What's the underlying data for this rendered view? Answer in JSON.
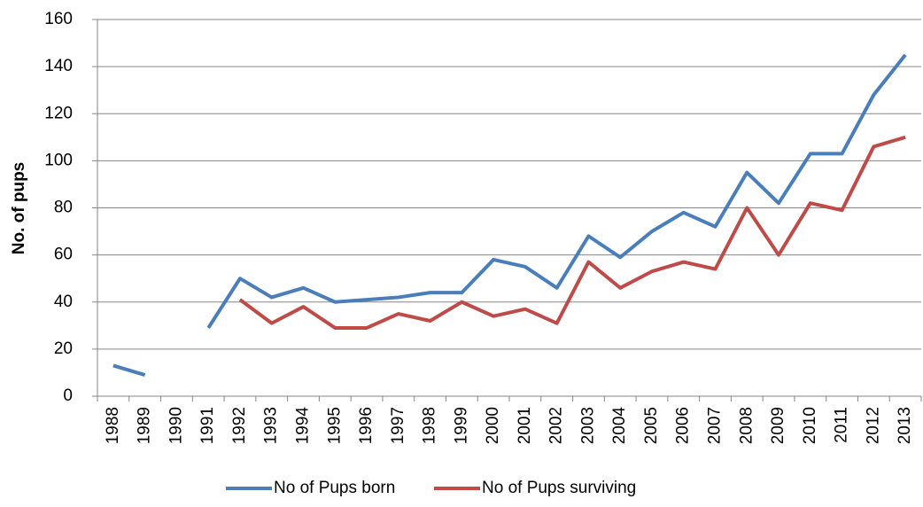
{
  "chart_data": {
    "type": "line",
    "ylabel": "No. of pups",
    "categories": [
      "1988",
      "1989",
      "1990",
      "1991",
      "1992",
      "1993",
      "1994",
      "1995",
      "1996",
      "1997",
      "1998",
      "1999",
      "2000",
      "2001",
      "2002",
      "2003",
      "2004",
      "2005",
      "2006",
      "2007",
      "2008",
      "2009",
      "2010",
      "2011",
      "2012",
      "2013"
    ],
    "series": [
      {
        "name": "No of Pups born",
        "color": "#4a7ebb",
        "values": [
          13,
          9,
          null,
          29,
          50,
          42,
          46,
          40,
          41,
          42,
          44,
          44,
          58,
          55,
          46,
          68,
          59,
          70,
          78,
          72,
          95,
          82,
          103,
          103,
          128,
          145
        ]
      },
      {
        "name": "No of Pups surviving",
        "color": "#be4b48",
        "values": [
          null,
          null,
          null,
          null,
          41,
          31,
          38,
          29,
          29,
          35,
          32,
          40,
          34,
          37,
          31,
          57,
          46,
          53,
          57,
          54,
          80,
          60,
          82,
          79,
          106,
          110
        ]
      }
    ],
    "ylim": [
      0,
      160
    ],
    "yticks": [
      0,
      20,
      40,
      60,
      80,
      100,
      120,
      140,
      160
    ],
    "grid": true,
    "legend": "bottom"
  }
}
